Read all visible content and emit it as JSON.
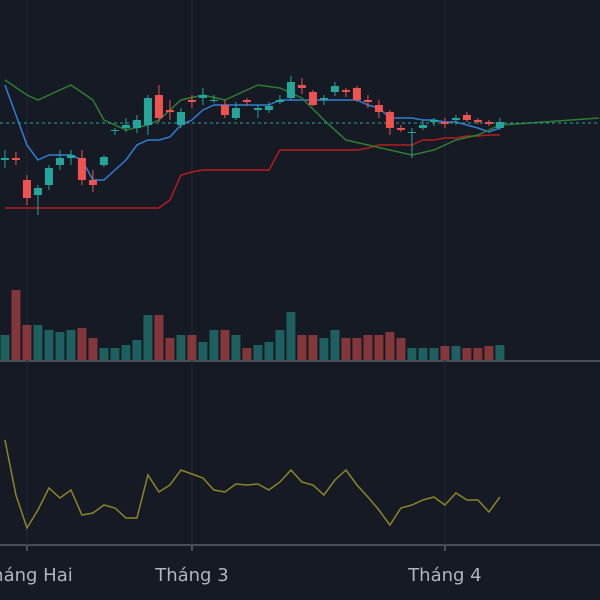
{
  "chart_data": [
    {
      "type": "candlestick",
      "up_color": "#26a69a",
      "down_color": "#ef5350",
      "xlim": [
        -0.45,
        54.1
      ],
      "ylim": [
        0,
        300
      ],
      "x": [
        0,
        1,
        2,
        3,
        4,
        5,
        6,
        7,
        8,
        9,
        10,
        11,
        12,
        13,
        14,
        15,
        16,
        17,
        18,
        19,
        20,
        21,
        22,
        23,
        24,
        25,
        26,
        27,
        28,
        29,
        30,
        31,
        32,
        33,
        34,
        35,
        36,
        37,
        38,
        39,
        40,
        41,
        42,
        43,
        44,
        45
      ],
      "open": [
        140,
        142,
        120,
        105,
        115,
        135,
        142,
        142,
        120,
        135,
        170,
        172,
        172,
        175,
        205,
        190,
        175,
        200,
        202,
        200,
        195,
        182,
        200,
        190,
        190,
        198,
        202,
        215,
        208,
        200,
        208,
        210,
        212,
        200,
        195,
        188,
        172,
        168,
        172,
        178,
        178,
        180,
        185,
        180,
        178,
        172
      ],
      "high": [
        150,
        148,
        125,
        115,
        135,
        150,
        150,
        150,
        130,
        145,
        172,
        182,
        185,
        205,
        215,
        200,
        192,
        205,
        212,
        205,
        200,
        198,
        202,
        195,
        198,
        205,
        224,
        222,
        210,
        205,
        218,
        212,
        214,
        205,
        200,
        190,
        175,
        172,
        180,
        182,
        182,
        185,
        188,
        182,
        180,
        182
      ],
      "low": [
        132,
        135,
        95,
        85,
        110,
        130,
        135,
        115,
        108,
        133,
        165,
        168,
        167,
        165,
        178,
        180,
        172,
        192,
        195,
        197,
        182,
        180,
        194,
        182,
        187,
        196,
        200,
        206,
        194,
        195,
        204,
        203,
        198,
        192,
        182,
        165,
        168,
        142,
        170,
        174,
        172,
        175,
        178,
        176,
        174,
        170
      ],
      "close": [
        142,
        140,
        102,
        112,
        132,
        142,
        145,
        120,
        115,
        143,
        170,
        175,
        180,
        202,
        182,
        188,
        188,
        198,
        205,
        200,
        185,
        192,
        198,
        192,
        194,
        200,
        218,
        212,
        195,
        202,
        214,
        208,
        200,
        198,
        188,
        172,
        170,
        168,
        175,
        180,
        176,
        182,
        180,
        178,
        176,
        178
      ],
      "price_line": 177,
      "price_line_color": "#26a69a",
      "series": [
        {
          "color": "#2f7fd6",
          "x": [
            0,
            1,
            2,
            3,
            4,
            5,
            6,
            7,
            8,
            9,
            10,
            11,
            12,
            13,
            14,
            15,
            16,
            17,
            18,
            19,
            20,
            21,
            22,
            23,
            24,
            25,
            26,
            27,
            28,
            29,
            30,
            31,
            32,
            33,
            34,
            35,
            36,
            37,
            38,
            39,
            40,
            41,
            42,
            43,
            44,
            45
          ],
          "values": [
            215,
            185,
            155,
            140,
            145,
            145,
            145,
            140,
            120,
            120,
            130,
            140,
            155,
            160,
            160,
            163,
            175,
            180,
            190,
            195,
            195,
            195,
            195,
            195,
            195,
            200,
            200,
            200,
            200,
            200,
            200,
            200,
            200,
            195,
            192,
            182,
            182,
            182,
            180,
            180,
            178,
            178,
            175,
            172,
            168,
            172
          ]
        },
        {
          "color": "#b71c1c",
          "x": [
            0,
            1,
            2,
            3,
            4,
            5,
            6,
            7,
            8,
            9,
            10,
            11,
            12,
            13,
            14,
            15,
            16,
            17,
            18,
            19,
            20,
            21,
            22,
            23,
            24,
            25,
            26,
            27,
            28,
            29,
            30,
            31,
            32,
            33,
            34,
            35,
            36,
            37,
            38,
            39,
            40,
            41,
            42,
            43,
            44,
            45
          ],
          "values": [
            92,
            92,
            92,
            92,
            92,
            92,
            92,
            92,
            92,
            92,
            92,
            92,
            92,
            92,
            92,
            100,
            125,
            128,
            130,
            130,
            130,
            130,
            130,
            130,
            130,
            150,
            150,
            150,
            150,
            150,
            150,
            150,
            150,
            152,
            155,
            155,
            155,
            155,
            160,
            160,
            162,
            162,
            164,
            164,
            165,
            165
          ]
        },
        {
          "color": "#2e7d32",
          "x": [
            0,
            2,
            3,
            5,
            6,
            8,
            9,
            11,
            13,
            14,
            16,
            18,
            20,
            23,
            25,
            27,
            29,
            31,
            33,
            35,
            37,
            39,
            41,
            43,
            45,
            49,
            54
          ],
          "values": [
            220,
            205,
            200,
            210,
            215,
            200,
            180,
            170,
            175,
            180,
            200,
            205,
            200,
            215,
            212,
            202,
            180,
            160,
            155,
            150,
            145,
            150,
            160,
            165,
            175,
            178,
            182
          ]
        }
      ]
    },
    {
      "type": "volume",
      "up_color": "rgba(38,166,154,0.5)",
      "down_color": "rgba(239,83,80,0.5)",
      "xlim": [
        -0.45,
        54.1
      ],
      "ylim": [
        0,
        80
      ],
      "x": [
        0,
        1,
        2,
        3,
        4,
        5,
        6,
        7,
        8,
        9,
        10,
        11,
        12,
        13,
        14,
        15,
        16,
        17,
        18,
        19,
        20,
        21,
        22,
        23,
        24,
        25,
        26,
        27,
        28,
        29,
        30,
        31,
        32,
        33,
        34,
        35,
        36,
        37,
        38,
        39,
        40,
        41,
        42,
        43,
        44,
        45
      ],
      "values": [
        25,
        70,
        35,
        35,
        30,
        28,
        30,
        32,
        22,
        12,
        12,
        15,
        20,
        45,
        45,
        22,
        25,
        25,
        18,
        30,
        30,
        25,
        12,
        15,
        18,
        30,
        48,
        25,
        25,
        22,
        30,
        22,
        22,
        25,
        25,
        28,
        22,
        12,
        12,
        12,
        14,
        14,
        12,
        12,
        14,
        15
      ]
    },
    {
      "type": "line",
      "color": "#8a8628",
      "xlim": [
        -0.45,
        54.1
      ],
      "ylim": [
        0,
        140
      ],
      "x": [
        0,
        1,
        2,
        3,
        4,
        5,
        6,
        7,
        8,
        9,
        10,
        11,
        12,
        13,
        14,
        15,
        16,
        17,
        18,
        19,
        20,
        21,
        22,
        23,
        24,
        25,
        26,
        27,
        28,
        29,
        30,
        31,
        32,
        33,
        34,
        35,
        36,
        37,
        38,
        39,
        40,
        41,
        42,
        43,
        44,
        45
      ],
      "values": [
        120,
        65,
        32,
        50,
        72,
        62,
        70,
        45,
        47,
        55,
        52,
        42,
        42,
        85,
        68,
        75,
        90,
        86,
        82,
        70,
        68,
        76,
        75,
        76,
        70,
        78,
        90,
        78,
        75,
        65,
        80,
        90,
        75,
        63,
        50,
        35,
        52,
        55,
        60,
        63,
        55,
        67,
        60,
        60,
        48,
        63
      ],
      "xticks": [
        {
          "value": 2,
          "label": "Tháng Hai"
        },
        {
          "value": 17,
          "label": "Tháng 3"
        },
        {
          "value": 40,
          "label": "Tháng 4"
        }
      ]
    }
  ]
}
